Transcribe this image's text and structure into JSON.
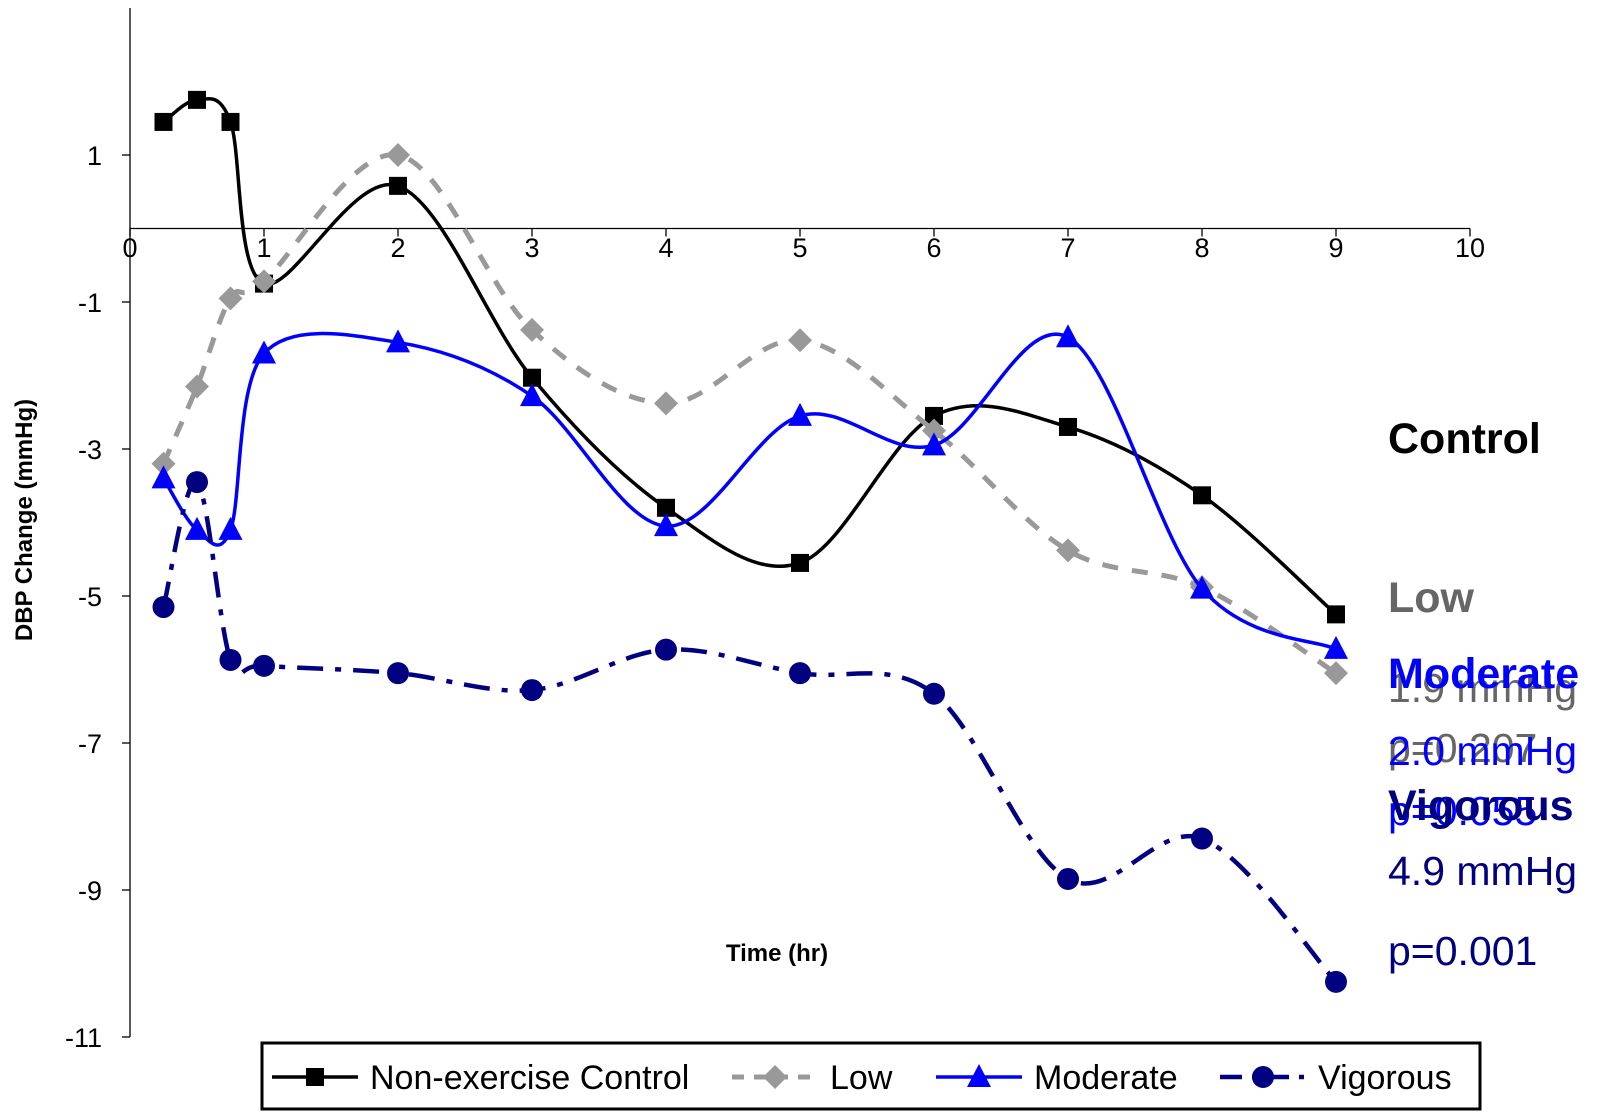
{
  "chart_data": {
    "type": "line",
    "xlabel": "Time (hr)",
    "ylabel": "DBP Change (mmHg)",
    "xlim": [
      0,
      10
    ],
    "ylim": [
      -11,
      3
    ],
    "x_ticks": [
      0,
      1,
      2,
      3,
      4,
      5,
      6,
      7,
      8,
      9,
      10
    ],
    "y_ticks": [
      1,
      -1,
      -3,
      -5,
      -7,
      -9,
      -11
    ],
    "grid": false,
    "legend_position": "bottom",
    "series": [
      {
        "name": "Non-exercise Control",
        "color": "#000000",
        "marker": "square",
        "dash": "solid",
        "x": [
          0.25,
          0.5,
          0.75,
          1,
          2,
          3,
          4,
          5,
          6,
          7,
          8,
          9
        ],
        "y": [
          1.45,
          1.75,
          1.45,
          -0.75,
          0.58,
          -2.03,
          -3.8,
          -4.55,
          -2.55,
          -2.7,
          -3.63,
          -5.25
        ]
      },
      {
        "name": "Low",
        "color": "#999999",
        "marker": "diamond",
        "dash": "dashed",
        "x": [
          0.25,
          0.5,
          0.75,
          1,
          2,
          3,
          4,
          5,
          6,
          7,
          8,
          9
        ],
        "y": [
          -3.2,
          -2.15,
          -0.95,
          -0.72,
          1.0,
          -1.38,
          -2.38,
          -1.52,
          -2.75,
          -4.38,
          -4.88,
          -6.05
        ]
      },
      {
        "name": "Moderate",
        "color": "#0000ff",
        "marker": "triangle",
        "dash": "solid",
        "x": [
          0.25,
          0.5,
          0.75,
          1,
          2,
          3,
          4,
          5,
          6,
          7,
          8,
          9
        ],
        "y": [
          -3.4,
          -4.1,
          -4.1,
          -1.7,
          -1.55,
          -2.28,
          -4.05,
          -2.55,
          -2.95,
          -1.48,
          -4.9,
          -5.72
        ]
      },
      {
        "name": "Vigorous",
        "color": "#000080",
        "marker": "circle",
        "dash": "dash-dot",
        "x": [
          0.25,
          0.5,
          0.75,
          1,
          2,
          3,
          4,
          5,
          6,
          7,
          8,
          9
        ],
        "y": [
          -5.15,
          -3.45,
          -5.87,
          -5.95,
          -6.05,
          -6.28,
          -5.73,
          -6.05,
          -6.33,
          -8.85,
          -8.3,
          -10.25
        ]
      }
    ],
    "annotations": [
      {
        "label": "Control",
        "lines": [],
        "color": "#000000"
      },
      {
        "label": "Low",
        "lines": [
          "1.9 mmHg",
          "p=0.207"
        ],
        "color": "#666666"
      },
      {
        "label": "Moderate",
        "lines": [
          "2.0 mmHg",
          "p=0.055"
        ],
        "color": "#0000ff"
      },
      {
        "label": "Vigorous",
        "lines": [
          "4.9 mmHg",
          "p=0.001"
        ],
        "color": "#000080"
      }
    ]
  }
}
